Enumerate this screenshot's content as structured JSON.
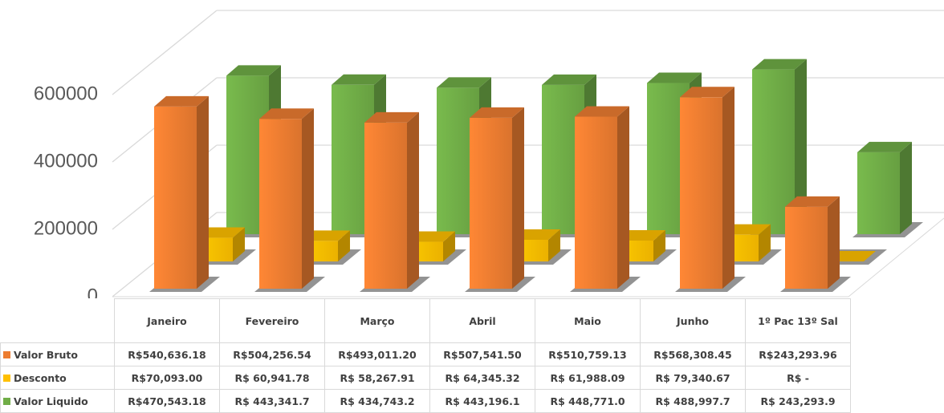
{
  "chart_data": {
    "type": "bar3d",
    "categories": [
      "Janeiro",
      "Fevereiro",
      "Março",
      "Abril",
      "Maio",
      "Junho",
      "1º Pac 13º Sal"
    ],
    "series": [
      {
        "name": "Valor Bruto",
        "color": "#ed7d31",
        "values": [
          540636.18,
          504256.54,
          493011.2,
          507541.5,
          510759.13,
          568308.45,
          243293.96
        ],
        "value_labels": [
          "R$540,636.18",
          "R$504,256.54",
          "R$493,011.20",
          "R$507,541.50",
          "R$510,759.13",
          "R$568,308.45",
          "R$243,293.96"
        ]
      },
      {
        "name": "Desconto",
        "color": "#ffc000",
        "values": [
          70093.0,
          60941.78,
          58267.91,
          64345.32,
          61988.09,
          79340.67,
          0
        ],
        "value_labels": [
          "R$70,093.00",
          "R$ 60,941.78",
          "R$ 58,267.91",
          "R$ 64,345.32",
          "R$ 61,988.09",
          "R$ 79,340.67",
          "R$ -"
        ]
      },
      {
        "name": "Valor Liquido",
        "color": "#70ad47",
        "values": [
          470543.18,
          443341.7,
          434743.2,
          443196.1,
          448771.0,
          488997.7,
          243293.9
        ],
        "value_labels": [
          "R$470,543.18",
          "R$ 443,341.7",
          "R$ 434,743.2",
          "R$ 443,196.1",
          "R$ 448,771.0",
          "R$ 488,997.7",
          "R$ 243,293.9"
        ]
      }
    ],
    "ylim": [
      0,
      600000
    ],
    "yticks": [
      0,
      200000,
      400000,
      600000
    ],
    "grid": true
  }
}
